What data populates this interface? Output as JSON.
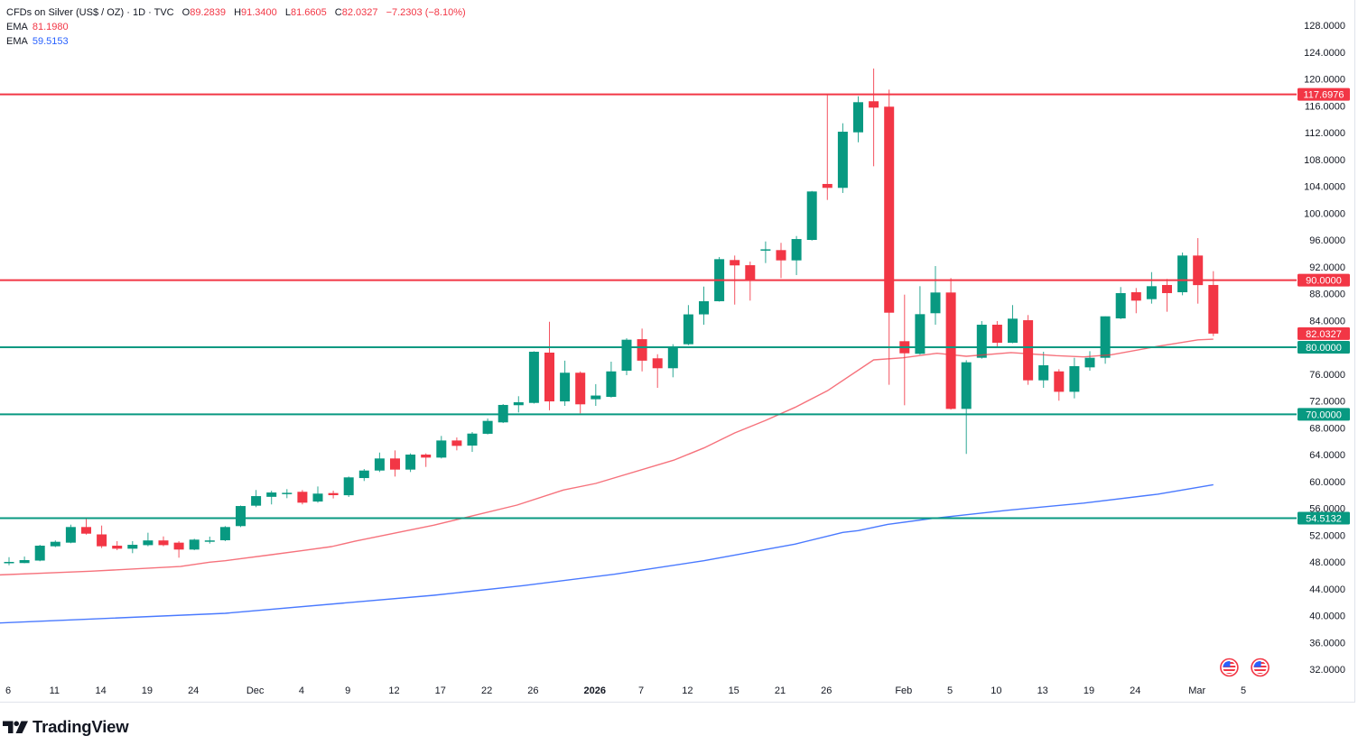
{
  "legend": {
    "title": "CFDs on Silver (US$ / OZ) · 1D · TVC",
    "ohlc": [
      {
        "k": "O",
        "v": "89.2839"
      },
      {
        "k": "H",
        "v": "91.3400"
      },
      {
        "k": "L",
        "v": "81.6605"
      },
      {
        "k": "C",
        "v": "82.0327"
      }
    ],
    "change": "−7.2303 (−8.10%)",
    "indicators": [
      {
        "name": "EMA",
        "value": "81.1980",
        "color": "#f23645"
      },
      {
        "name": "EMA",
        "value": "59.5153",
        "color": "#2962ff"
      }
    ]
  },
  "footer": {
    "brand": "TradingView"
  },
  "chart_data": {
    "type": "candlestick",
    "title": "CFDs on Silver (US$ / OZ) · 1D · TVC",
    "xlabel": "",
    "ylabel": "",
    "ylim": [
      32,
      128
    ],
    "grid": false,
    "legend_position": "top-left",
    "colors": {
      "up": "#089981",
      "down": "#f23645",
      "text": "#131722",
      "border": "#e0e3eb"
    },
    "x": [
      "Nov 6",
      "Nov 7",
      "Nov 10",
      "Nov 11",
      "Nov 12",
      "Nov 13",
      "Nov 14",
      "Nov 17",
      "Nov 18",
      "Nov 19",
      "Nov 20",
      "Nov 21",
      "Nov 24",
      "Nov 25",
      "Nov 26",
      "Nov 28",
      "Dec 1",
      "Dec 2",
      "Dec 3",
      "Dec 4",
      "Dec 5",
      "Dec 8",
      "Dec 9",
      "Dec 10",
      "Dec 11",
      "Dec 12",
      "Dec 15",
      "Dec 16",
      "Dec 17",
      "Dec 18",
      "Dec 19",
      "Dec 22",
      "Dec 23",
      "Dec 24",
      "Dec 26",
      "Dec 29",
      "Dec 30",
      "Dec 31",
      "Jan 2",
      "Jan 5",
      "Jan 6",
      "Jan 7",
      "Jan 8",
      "Jan 9",
      "Jan 12",
      "Jan 13",
      "Jan 14",
      "Jan 15",
      "Jan 16",
      "Jan 20",
      "Jan 21",
      "Jan 22",
      "Jan 23",
      "Jan 26",
      "Jan 27",
      "Jan 28",
      "Jan 29",
      "Jan 30",
      "Feb 2",
      "Feb 3",
      "Feb 4",
      "Feb 5",
      "Feb 6",
      "Feb 9",
      "Feb 10",
      "Feb 11",
      "Feb 12",
      "Feb 13",
      "Feb 17",
      "Feb 18",
      "Feb 19",
      "Feb 20",
      "Feb 23",
      "Feb 24",
      "Feb 25",
      "Feb 26",
      "Feb 27",
      "Mar 2",
      "Mar 3"
    ],
    "series": [
      {
        "name": "CFDs on Silver (US$ / OZ)",
        "kind": "ohlc",
        "ohlc_order": [
          "open",
          "high",
          "low",
          "close"
        ],
        "ohlc": [
          [
            47.9,
            48.7,
            47.5,
            48.0
          ],
          [
            47.83,
            48.8,
            47.8,
            48.27
          ],
          [
            48.2,
            50.55,
            48.1,
            50.42
          ],
          [
            50.33,
            51.2,
            50.2,
            51.0
          ],
          [
            50.87,
            53.55,
            50.78,
            53.2
          ],
          [
            53.2,
            54.45,
            52.07,
            52.21
          ],
          [
            52.1,
            53.42,
            50.06,
            50.33
          ],
          [
            50.42,
            51.09,
            49.75,
            49.97
          ],
          [
            49.97,
            51.09,
            49.3,
            50.55
          ],
          [
            50.5,
            52.35,
            50.33,
            51.2
          ],
          [
            51.2,
            51.8,
            50.33,
            50.5
          ],
          [
            50.87,
            51.09,
            48.63,
            49.84
          ],
          [
            49.84,
            51.45,
            49.75,
            51.32
          ],
          [
            51.05,
            51.77,
            50.73,
            51.2
          ],
          [
            51.23,
            53.34,
            51.1,
            53.2
          ],
          [
            53.34,
            56.4,
            53.2,
            56.33
          ],
          [
            56.38,
            58.72,
            56.16,
            57.81
          ],
          [
            57.7,
            58.62,
            56.57,
            58.35
          ],
          [
            58.2,
            58.85,
            57.5,
            58.3
          ],
          [
            58.45,
            58.72,
            56.57,
            56.83
          ],
          [
            57.0,
            59.25,
            56.83,
            58.18
          ],
          [
            58.26,
            58.62,
            57.46,
            57.95
          ],
          [
            57.94,
            60.73,
            57.68,
            60.6
          ],
          [
            60.5,
            61.85,
            60.06,
            61.62
          ],
          [
            61.62,
            64.3,
            61.4,
            63.42
          ],
          [
            63.42,
            64.63,
            60.73,
            61.76
          ],
          [
            61.76,
            64.18,
            61.4,
            64.0
          ],
          [
            64.0,
            64.18,
            62.16,
            63.55
          ],
          [
            63.55,
            66.78,
            63.42,
            66.1
          ],
          [
            66.1,
            66.55,
            64.63,
            65.3
          ],
          [
            65.34,
            67.36,
            64.4,
            67.13
          ],
          [
            67.1,
            69.38,
            67.0,
            69.02
          ],
          [
            68.8,
            71.53,
            68.7,
            71.4
          ],
          [
            71.36,
            72.7,
            70.28,
            71.8
          ],
          [
            71.7,
            79.4,
            71.6,
            79.33
          ],
          [
            79.2,
            83.8,
            70.6,
            71.93
          ],
          [
            71.93,
            78.0,
            71.26,
            76.2
          ],
          [
            76.2,
            76.4,
            70.14,
            71.49
          ],
          [
            72.25,
            74.5,
            71.26,
            72.8
          ],
          [
            72.6,
            77.85,
            72.5,
            76.4
          ],
          [
            76.5,
            81.35,
            75.83,
            81.12
          ],
          [
            81.2,
            82.78,
            76.4,
            78.0
          ],
          [
            78.35,
            78.96,
            73.95,
            76.87
          ],
          [
            76.87,
            80.45,
            75.52,
            80.0
          ],
          [
            80.45,
            86.28,
            80.3,
            84.9
          ],
          [
            84.9,
            89.05,
            83.36,
            86.86
          ],
          [
            86.86,
            93.45,
            86.8,
            93.13
          ],
          [
            93.0,
            93.67,
            86.36,
            92.2
          ],
          [
            92.23,
            92.77,
            86.95,
            89.99
          ],
          [
            94.4,
            95.77,
            92.55,
            94.6
          ],
          [
            94.48,
            95.56,
            90.31,
            92.95
          ],
          [
            92.95,
            96.58,
            90.76,
            96.13
          ],
          [
            96.0,
            103.3,
            95.9,
            103.22
          ],
          [
            104.34,
            117.65,
            101.96,
            103.76
          ],
          [
            103.76,
            113.39,
            103.0,
            112.13
          ],
          [
            112.04,
            117.42,
            110.56,
            116.53
          ],
          [
            116.67,
            121.55,
            106.98,
            115.72
          ],
          [
            115.86,
            118.41,
            74.4,
            85.15
          ],
          [
            80.9,
            87.84,
            71.35,
            79.1
          ],
          [
            79.02,
            89.1,
            78.9,
            84.93
          ],
          [
            85.07,
            92.1,
            83.36,
            88.16
          ],
          [
            88.16,
            90.31,
            70.7,
            70.81
          ],
          [
            70.81,
            78.07,
            64.1,
            77.76
          ],
          [
            78.43,
            83.9,
            78.3,
            83.36
          ],
          [
            83.36,
            83.9,
            80.0,
            80.67
          ],
          [
            80.67,
            86.28,
            80.6,
            84.26
          ],
          [
            84.03,
            84.8,
            74.4,
            75.07
          ],
          [
            75.07,
            79.33,
            73.95,
            77.31
          ],
          [
            76.4,
            76.73,
            72.03,
            73.36
          ],
          [
            73.36,
            78.43,
            72.38,
            77.18
          ],
          [
            77.0,
            79.42,
            76.5,
            78.43
          ],
          [
            78.43,
            84.6,
            77.54,
            84.61
          ],
          [
            84.3,
            88.97,
            84.2,
            88.07
          ],
          [
            88.2,
            88.83,
            85.07,
            86.95
          ],
          [
            87.17,
            91.2,
            86.5,
            89.1
          ],
          [
            89.28,
            90.18,
            85.29,
            88.07
          ],
          [
            88.2,
            94.12,
            87.75,
            93.67
          ],
          [
            93.67,
            96.27,
            86.5,
            89.263
          ],
          [
            89.2839,
            91.34,
            81.6605,
            82.0327
          ]
        ]
      },
      {
        "name": "EMA",
        "kind": "line",
        "color": "#f23645",
        "last": 81.198,
        "points": [
          [
            -0.6,
            46.07
          ],
          [
            5.3,
            46.62
          ],
          [
            11.1,
            47.31
          ],
          [
            13.0,
            47.96
          ],
          [
            14.0,
            48.18
          ],
          [
            17.0,
            49.07
          ],
          [
            18.9,
            49.65
          ],
          [
            20.9,
            50.28
          ],
          [
            22.4,
            51.08
          ],
          [
            27.5,
            53.47
          ],
          [
            32.9,
            56.47
          ],
          [
            35.9,
            58.72
          ],
          [
            38.0,
            59.7
          ],
          [
            43.1,
            63.2
          ],
          [
            45.0,
            64.98
          ],
          [
            47.0,
            67.23
          ],
          [
            49.0,
            69.1
          ],
          [
            50.9,
            71.03
          ],
          [
            53.0,
            73.5
          ],
          [
            56.0,
            78.12
          ],
          [
            57.9,
            78.43
          ],
          [
            60.1,
            79.1
          ],
          [
            62.0,
            78.65
          ],
          [
            64.9,
            79.2
          ],
          [
            67.8,
            78.75
          ],
          [
            69.6,
            78.56
          ],
          [
            71.4,
            78.88
          ],
          [
            74.4,
            80.13
          ],
          [
            77.0,
            81.1
          ],
          [
            78.0,
            81.198
          ]
        ]
      },
      {
        "name": "EMA",
        "kind": "line",
        "color": "#2962ff",
        "last": 59.5153,
        "points": [
          [
            -0.6,
            38.9
          ],
          [
            14.0,
            40.33
          ],
          [
            27.5,
            43.02
          ],
          [
            33.3,
            44.47
          ],
          [
            39.2,
            46.16
          ],
          [
            45.0,
            48.18
          ],
          [
            50.9,
            50.65
          ],
          [
            54.0,
            52.4
          ],
          [
            55.0,
            52.67
          ],
          [
            56.9,
            53.6
          ],
          [
            59.8,
            54.48
          ],
          [
            64.7,
            55.7
          ],
          [
            69.6,
            56.76
          ],
          [
            74.4,
            58.1
          ],
          [
            78.0,
            59.5153
          ]
        ]
      }
    ],
    "hlines": [
      {
        "value": 117.6976,
        "label": "117.6976",
        "color": "#f23645"
      },
      {
        "value": 90.0,
        "label": "90.0000",
        "color": "#f23645"
      },
      {
        "value": 80.0,
        "label": "80.0000",
        "color": "#089981"
      },
      {
        "value": 70.0,
        "label": "70.0000",
        "color": "#089981"
      },
      {
        "value": 54.5132,
        "label": "54.5132",
        "color": "#089981"
      }
    ],
    "last_price": {
      "value": 82.0327,
      "label": "82.0327",
      "color": "#f23645"
    },
    "yticks": [
      "128.0000",
      "124.0000",
      "120.0000",
      "116.0000",
      "112.0000",
      "108.0000",
      "104.0000",
      "100.0000",
      "96.0000",
      "92.0000",
      "88.0000",
      "84.0000",
      "76.0000",
      "72.0000",
      "68.0000",
      "64.0000",
      "60.0000",
      "56.0000",
      "52.0000",
      "48.0000",
      "44.0000",
      "40.0000",
      "36.0000",
      "32.0000"
    ],
    "xticks": [
      {
        "label": "6",
        "i": 0
      },
      {
        "label": "11",
        "i": 3
      },
      {
        "label": "14",
        "i": 6
      },
      {
        "label": "19",
        "i": 9
      },
      {
        "label": "24",
        "i": 12
      },
      {
        "label": "Dec",
        "i": 16
      },
      {
        "label": "4",
        "i": 19
      },
      {
        "label": "9",
        "i": 22
      },
      {
        "label": "12",
        "i": 25
      },
      {
        "label": "17",
        "i": 28
      },
      {
        "label": "22",
        "i": 31
      },
      {
        "label": "26",
        "i": 34
      },
      {
        "label": "2026",
        "i": 38,
        "bold": true
      },
      {
        "label": "7",
        "i": 41
      },
      {
        "label": "12",
        "i": 44
      },
      {
        "label": "15",
        "i": 47
      },
      {
        "label": "21",
        "i": 50
      },
      {
        "label": "26",
        "i": 53
      },
      {
        "label": "Feb",
        "i": 58
      },
      {
        "label": "5",
        "i": 61
      },
      {
        "label": "10",
        "i": 64
      },
      {
        "label": "13",
        "i": 67
      },
      {
        "label": "19",
        "i": 70
      },
      {
        "label": "24",
        "i": 73
      },
      {
        "label": "Mar",
        "i": 77
      },
      {
        "label": "5",
        "i": 80
      }
    ],
    "events": [
      {
        "i": 79,
        "icon": "us-flag-icon"
      },
      {
        "i": 81,
        "icon": "us-flag-icon"
      }
    ]
  }
}
